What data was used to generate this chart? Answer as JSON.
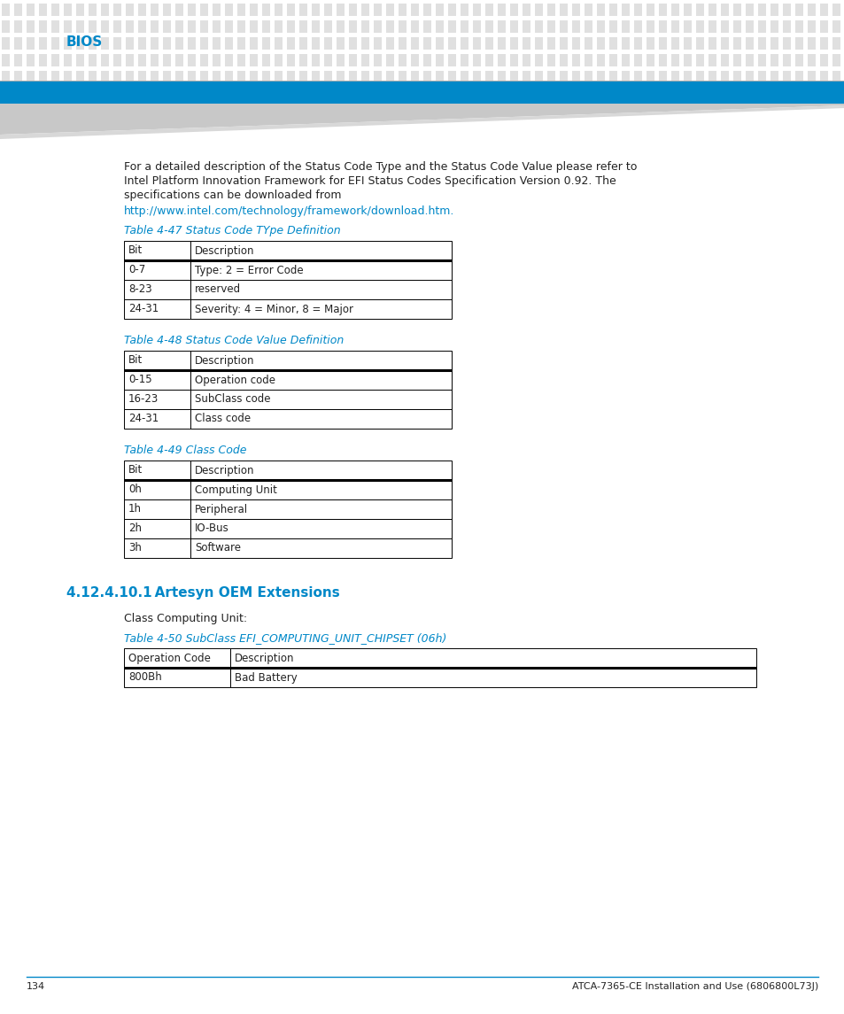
{
  "page_bg": "#ffffff",
  "header_dot_color": "#e0e0e0",
  "header_blue_bar_color": "#0088c8",
  "header_bios_text": "BIOS",
  "header_bios_color": "#0088c8",
  "header_bios_fontsize": 11,
  "body_text_intro_line1": "For a detailed description of the Status Code Type and the Status Code Value please refer to",
  "body_text_intro_line2": "Intel Platform Innovation Framework for EFI Status Codes Specification Version 0.92. The",
  "body_text_intro_line3": "specifications can be downloaded from",
  "body_link": "http://www.intel.com/technology/framework/download.htm",
  "body_link_suffix": ".",
  "body_link_color": "#0088c8",
  "body_text_color": "#222222",
  "body_text_fontsize": 9.0,
  "table_title_color": "#0088c8",
  "table_title_fontsize": 9.0,
  "table_cell_bg": "#ffffff",
  "table_border_color": "#000000",
  "table_text_fontsize": 8.5,
  "table47_title": "Table 4-47 Status Code TYpe Definition",
  "table47_headers": [
    "Bit",
    "Description"
  ],
  "table47_rows": [
    [
      "0-7",
      "Type: 2 = Error Code"
    ],
    [
      "8-23",
      "reserved"
    ],
    [
      "24-31",
      "Severity: 4 = Minor, 8 = Major"
    ]
  ],
  "table48_title": "Table 4-48 Status Code Value Definition",
  "table48_headers": [
    "Bit",
    "Description"
  ],
  "table48_rows": [
    [
      "0-15",
      "Operation code"
    ],
    [
      "16-23",
      "SubClass code"
    ],
    [
      "24-31",
      "Class code"
    ]
  ],
  "table49_title": "Table 4-49 Class Code",
  "table49_headers": [
    "Bit",
    "Description"
  ],
  "table49_rows": [
    [
      "0h",
      "Computing Unit"
    ],
    [
      "1h",
      "Peripheral"
    ],
    [
      "2h",
      "IO-Bus"
    ],
    [
      "3h",
      "Software"
    ]
  ],
  "section_title": "4.12.4.10.1 Artesyn OEM Extensions",
  "section_title_color": "#0088c8",
  "section_title_fontsize": 11,
  "class_computing_unit_text": "Class Computing Unit:",
  "table50_title": "Table 4-50 SubClass EFI_COMPUTING_UNIT_CHIPSET (06h)",
  "table50_headers": [
    "Operation Code",
    "Description"
  ],
  "table50_rows": [
    [
      "800Bh",
      "Bad Battery"
    ]
  ],
  "footer_line_color": "#0088c8",
  "footer_page": "134",
  "footer_right": "ATCA-7365-CE Installation and Use (6806800L73J)",
  "footer_fontsize": 8.0
}
